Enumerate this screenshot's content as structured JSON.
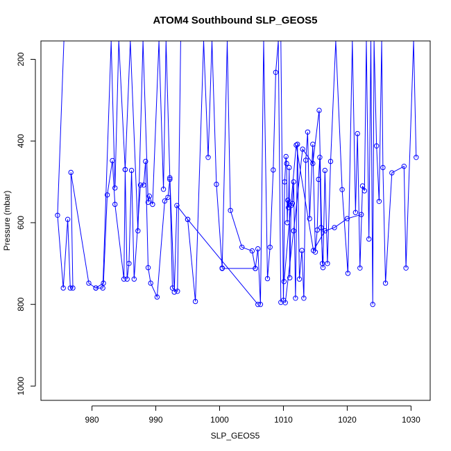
{
  "chart_data": {
    "type": "line",
    "title": "ATOM4 Southbound SLP_GEOS5",
    "xlabel": "SLP_GEOS5",
    "ylabel": "Pressure (mbar)",
    "xlim": [
      972.0,
      1033.0
    ],
    "ylim": [
      1035,
      155
    ],
    "y_reversed": true,
    "x_ticks": [
      "980",
      "990",
      "1000",
      "1010",
      "1020",
      "1030"
    ],
    "y_ticks": [
      "200",
      "400",
      "600",
      "800",
      "1000"
    ],
    "grid": false,
    "marker": "open-circle",
    "series_color": "#0000ff",
    "segments": [
      {
        "x": [
          975.6,
          974.6,
          975.5,
          976.2,
          976.6,
          977.0,
          976.7,
          979.5,
          980.6,
          981.8,
          982.4,
          983.2,
          983.6,
          985.0,
          985.2,
          985.5,
          985.8,
          986.2,
          986.6,
          987.6,
          988.1,
          988.4,
          988.8,
          989.2,
          990.2,
          991.4,
          991.9,
          992.2,
          992.6,
          993.4,
          993.9
        ],
        "y": [
          155,
          582,
          760,
          592,
          760,
          760,
          477,
          748,
          760,
          748,
          532,
          448,
          555,
          738,
          470,
          738,
          700,
          472,
          738,
          508,
          508,
          450,
          710,
          748,
          782,
          547,
          538,
          494,
          760,
          768,
          155
        ]
      },
      {
        "x": [
          980.6,
          981.7,
          983.0,
          983.6,
          984.2,
          985.2,
          986.0,
          987.2,
          988.0,
          988.8,
          989.0,
          989.5,
          990.5,
          991.2,
          991.6,
          992.2,
          992.9,
          993.3,
          995.0,
          996.2,
          997.5,
          998.2,
          998.8,
          999.5,
          1000.4,
          1001.2,
          1001.7,
          1003.5,
          1005.1,
          1005.6,
          1006.0,
          1006.4,
          1006.9,
          1007.5,
          1007.9,
          1008.4,
          1008.8,
          1009.2,
          1009.6
        ],
        "y": [
          760,
          760,
          155,
          515,
          155,
          470,
          155,
          620,
          155,
          550,
          535,
          555,
          155,
          518,
          155,
          490,
          770,
          558,
          592,
          793,
          155,
          440,
          155,
          506,
          711,
          155,
          570,
          660,
          669,
          712,
          664,
          800,
          155,
          737,
          660,
          471,
          232,
          155,
          795
        ]
      },
      {
        "x": [
          995.0,
          1006.0
        ],
        "y": [
          592,
          800
        ]
      },
      {
        "x": [
          1005.6,
          1000.4
        ],
        "y": [
          712,
          712
        ]
      },
      {
        "x": [
          1009.6,
          1010.0,
          1010.2,
          1010.4,
          1010.5,
          1010.6,
          1010.7,
          1010.8,
          1010.9,
          1011.0,
          1011.2,
          1011.4,
          1011.6,
          1011.9,
          1012.2,
          1012.5,
          1012.9,
          1013.2,
          1013.5,
          1013.8,
          1014.1,
          1014.6,
          1015.0,
          1015.3,
          1015.5,
          1015.7,
          1015.9,
          1016.2,
          1016.5,
          1016.9,
          1017.4,
          1018.2,
          1019.2,
          1020.1,
          1020.8,
          1021.3,
          1021.6,
          1022.0,
          1022.4,
          1022.7,
          1023.0,
          1023.4,
          1023.7,
          1024.0,
          1024.2,
          1024.6,
          1025.0,
          1025.4,
          1025.6,
          1026.0,
          1027.0,
          1028.9,
          1029.2,
          1030.4,
          1030.8
        ],
        "y": [
          155,
          790,
          500,
          438,
          455,
          600,
          545,
          563,
          465,
          735,
          558,
          553,
          500,
          785,
          408,
          738,
          668,
          785,
          447,
          378,
          590,
          408,
          672,
          618,
          494,
          440,
          612,
          710,
          472,
          700,
          450,
          155,
          519,
          724,
          155,
          575,
          382,
          711,
          510,
          522,
          155,
          640,
          155,
          800,
          155,
          412,
          548,
          155,
          465,
          748,
          478,
          462,
          711,
          155,
          440
        ]
      },
      {
        "x": [
          1010.1,
          1012.0,
          1014.7,
          1016.5,
          1018.0,
          1020.0,
          1022.2
        ],
        "y": [
          744,
          410,
          668,
          620,
          612,
          590,
          580
        ]
      },
      {
        "x": [
          1010.3,
          1011.6,
          1013.0,
          1014.6,
          1015.6,
          1016.1
        ],
        "y": [
          796,
          620,
          420,
          455,
          325,
          700
        ]
      }
    ]
  }
}
